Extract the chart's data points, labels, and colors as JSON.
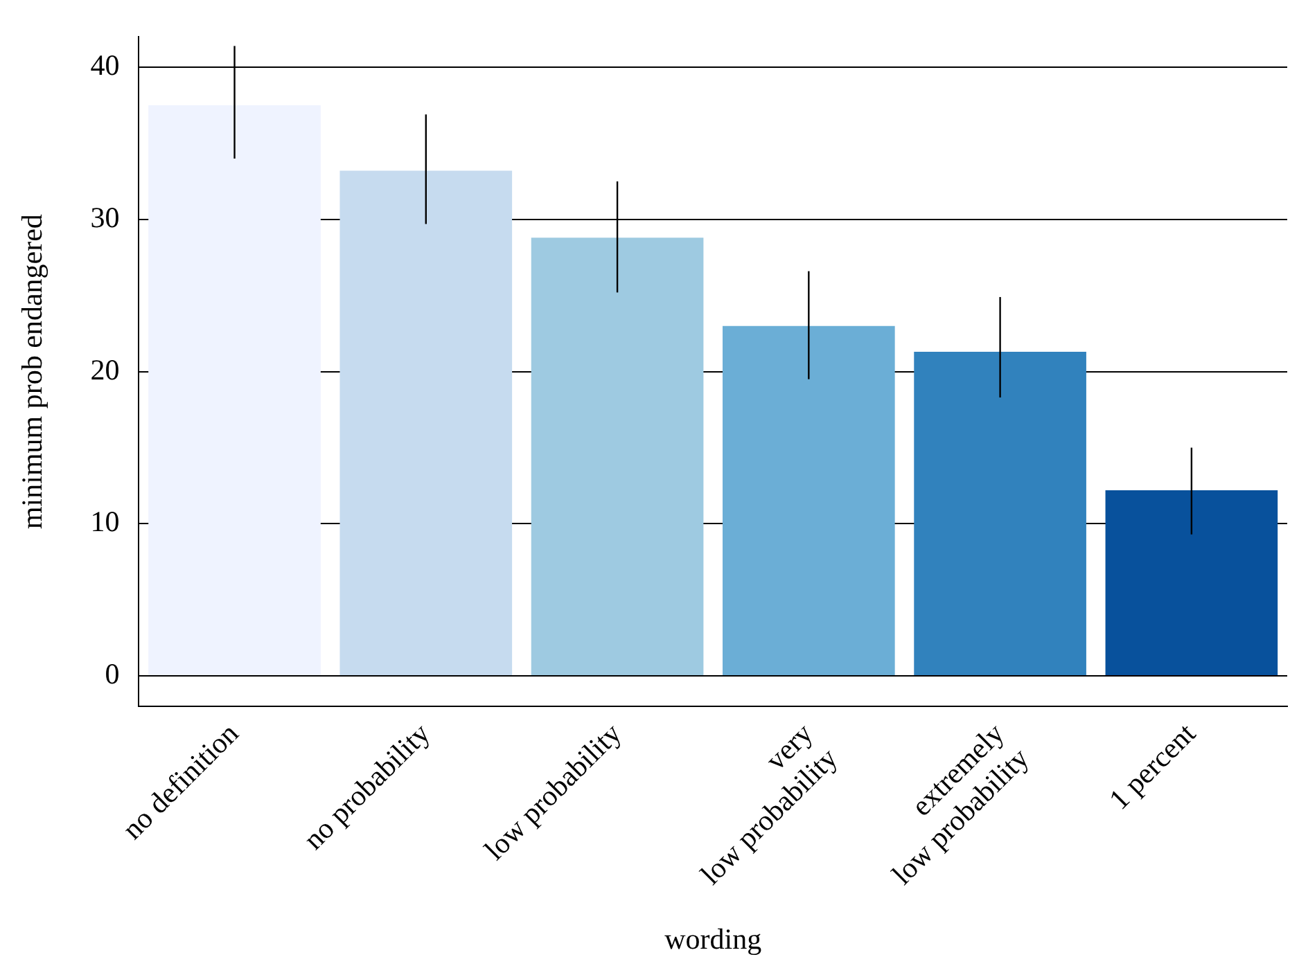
{
  "chart_data": {
    "type": "bar",
    "xlabel": "wording",
    "ylabel": "minimum prob endangered",
    "categories": [
      "no definition",
      "no probability",
      "low probability",
      "very\nlow probability",
      "extremely\nlow probability",
      "1 percent"
    ],
    "values": [
      37.5,
      33.2,
      28.8,
      23.0,
      21.3,
      12.2
    ],
    "colors": [
      "#eff3ff",
      "#c6dbef",
      "#9ecae1",
      "#6baed6",
      "#3182bd",
      "#08519c"
    ],
    "errors": [
      [
        34.0,
        41.4
      ],
      [
        29.7,
        36.9
      ],
      [
        25.2,
        32.5
      ],
      [
        19.5,
        26.6
      ],
      [
        18.3,
        24.9
      ],
      [
        9.3,
        15.0
      ]
    ],
    "ylim": [
      -2,
      42
    ],
    "yticks": [
      0,
      10,
      20,
      30,
      40
    ],
    "grid": "y",
    "legend": false
  }
}
